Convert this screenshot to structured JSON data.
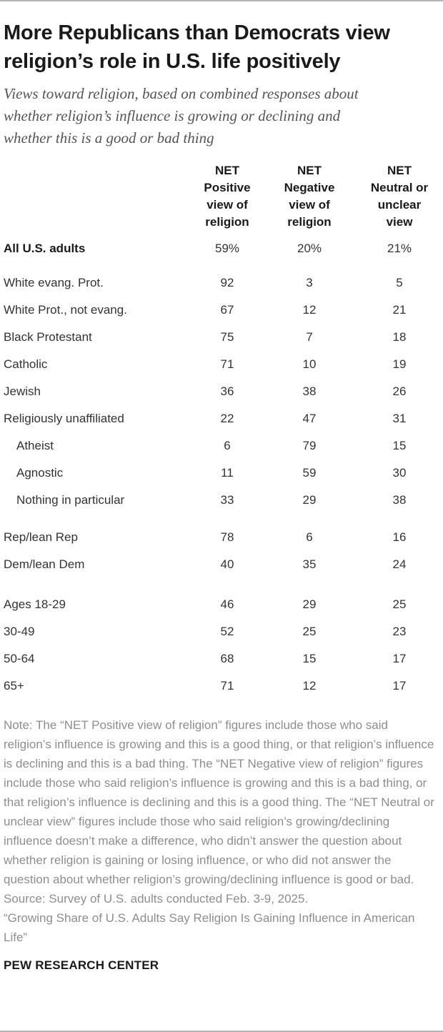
{
  "header": {
    "title": "More Republicans than Democrats view religion’s role in U.S. life positively",
    "subtitle": "Views toward religion, based on combined responses about whether religion’s influence is growing or declining and whether this is a good or bad thing"
  },
  "chart_data": {
    "type": "table",
    "title": "More Republicans than Democrats view religion’s role in U.S. life positively",
    "unit": "%",
    "columns": [
      {
        "label": "NET Positive view of religion",
        "lines": [
          "NET",
          "Positive",
          "view of",
          "religion"
        ]
      },
      {
        "label": "NET Negative view of religion",
        "lines": [
          "NET",
          "Negative",
          "view of",
          "religion"
        ]
      },
      {
        "label": "NET Neutral or unclear view",
        "lines": [
          "NET",
          "Neutral or",
          "unclear",
          "view"
        ]
      }
    ],
    "rows": [
      {
        "label": "All U.S. adults",
        "values": [
          "59%",
          "20%",
          "21%"
        ],
        "bold": true,
        "indent": false,
        "group": 0
      },
      {
        "label": "White evang. Prot.",
        "values": [
          "92",
          "3",
          "5"
        ],
        "bold": false,
        "indent": false,
        "group": 1
      },
      {
        "label": "White Prot., not evang.",
        "values": [
          "67",
          "12",
          "21"
        ],
        "bold": false,
        "indent": false,
        "group": 1
      },
      {
        "label": "Black Protestant",
        "values": [
          "75",
          "7",
          "18"
        ],
        "bold": false,
        "indent": false,
        "group": 1
      },
      {
        "label": "Catholic",
        "values": [
          "71",
          "10",
          "19"
        ],
        "bold": false,
        "indent": false,
        "group": 1
      },
      {
        "label": "Jewish",
        "values": [
          "36",
          "38",
          "26"
        ],
        "bold": false,
        "indent": false,
        "group": 1
      },
      {
        "label": "Religiously unaffiliated",
        "values": [
          "22",
          "47",
          "31"
        ],
        "bold": false,
        "indent": false,
        "group": 1
      },
      {
        "label": "Atheist",
        "values": [
          "6",
          "79",
          "15"
        ],
        "bold": false,
        "indent": true,
        "group": 1
      },
      {
        "label": "Agnostic",
        "values": [
          "11",
          "59",
          "30"
        ],
        "bold": false,
        "indent": true,
        "group": 1
      },
      {
        "label": "Nothing in particular",
        "values": [
          "33",
          "29",
          "38"
        ],
        "bold": false,
        "indent": true,
        "group": 1
      },
      {
        "label": "Rep/lean Rep",
        "values": [
          "78",
          "6",
          "16"
        ],
        "bold": false,
        "indent": false,
        "group": 2
      },
      {
        "label": "Dem/lean Dem",
        "values": [
          "40",
          "35",
          "24"
        ],
        "bold": false,
        "indent": false,
        "group": 2
      },
      {
        "label": "Ages 18-29",
        "values": [
          "46",
          "29",
          "25"
        ],
        "bold": false,
        "indent": false,
        "group": 3
      },
      {
        "label": "30-49",
        "values": [
          "52",
          "25",
          "23"
        ],
        "bold": false,
        "indent": false,
        "group": 3
      },
      {
        "label": "50-64",
        "values": [
          "68",
          "15",
          "17"
        ],
        "bold": false,
        "indent": false,
        "group": 3
      },
      {
        "label": "65+",
        "values": [
          "71",
          "12",
          "17"
        ],
        "bold": false,
        "indent": false,
        "group": 3
      }
    ]
  },
  "footer": {
    "note": "Note: The “NET Positive view of religion” figures include those who said religion’s influence is growing and this is a good thing, or that religion’s influence is declining and this is a bad thing. The “NET Negative view of religion” figures include those who said religion’s influence is growing and this is a bad thing, or that religion’s influence is declining and this is a good thing. The “NET Neutral or unclear view” figures include those who said religion’s growing/declining influence doesn’t make a difference, who didn’t answer the question about whether religion is gaining or losing influence, or who did not answer the question about whether religion’s growing/declining influence is good or bad.",
    "source": "Source: Survey of U.S. adults conducted Feb. 3-9, 2025.",
    "quote": "“Growing Share of U.S. Adults Say Religion Is Gaining Influence in American Life”",
    "brand": "PEW RESEARCH CENTER"
  },
  "colors": {
    "title": "#1a1a1a",
    "subtitle": "#545454",
    "body_text": "#333333",
    "note_text": "#8e8e8e",
    "rule": "#b5b5b5",
    "background": "#ffffff"
  }
}
